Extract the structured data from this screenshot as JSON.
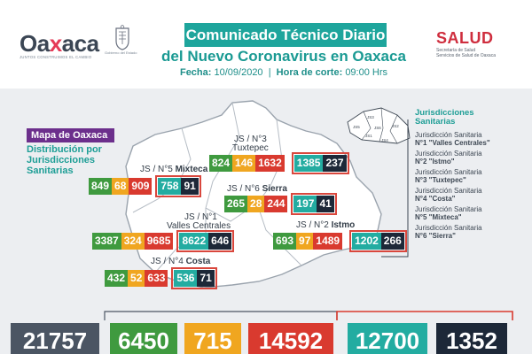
{
  "header": {
    "logo_word_a": "Oa",
    "logo_word_x": "x",
    "logo_word_b": "aca",
    "logo_tagline": "JUNTOS CONSTRUIMOS EL CAMBIO",
    "seal_caption": "Gobierno del Estado",
    "title": "Comunicado Técnico Diario",
    "subtitle": "del Nuevo Coronavirus en Oaxaca",
    "fecha_label": "Fecha:",
    "fecha_value": "10/09/2020",
    "separator": "|",
    "hora_label": "Hora de corte:",
    "hora_value": "09:00 Hrs",
    "salud": "SALUD",
    "salud_sub": "Secretaría de Salud\nServicios de Salud de Oaxaca"
  },
  "map": {
    "label": "Mapa de Oaxaca",
    "dist_line1": "Distribución por",
    "dist_line2": "Jurisdicciones",
    "dist_line3": "Sanitarias"
  },
  "jurisdictions": [
    {
      "name_prefix": "JS / N°3",
      "name": "Tuxtepec",
      "values": [
        "824",
        "146",
        "1632"
      ],
      "framed": [
        "1385",
        "237"
      ]
    },
    {
      "name_prefix": "JS / N°5",
      "name": "Mixteca",
      "values": [
        "849",
        "68",
        "909"
      ],
      "framed": [
        "758",
        "91"
      ]
    },
    {
      "name_prefix": "JS / N°6",
      "name": "Sierra",
      "values": [
        "265",
        "28",
        "244"
      ],
      "framed": [
        "197",
        "41"
      ]
    },
    {
      "name_prefix": "JS / N°1",
      "name": "Valles Centrales",
      "values": [
        "3387",
        "324",
        "9685"
      ],
      "framed": [
        "8622",
        "646"
      ]
    },
    {
      "name_prefix": "JS / N°2",
      "name": "Istmo",
      "values": [
        "693",
        "97",
        "1489"
      ],
      "framed": [
        "1202",
        "266"
      ]
    },
    {
      "name_prefix": "JS / N°4",
      "name": "Costa",
      "values": [
        "432",
        "52",
        "633"
      ],
      "framed": [
        "536",
        "71"
      ]
    }
  ],
  "mini_map_labels": [
    "JS5",
    "JS3",
    "JS6",
    "JS1",
    "JS2",
    "JS4"
  ],
  "panel": {
    "title_line1": "Jurisdicciones",
    "title_line2": "Sanitarias",
    "items": [
      {
        "prefix": "Jurisdicción Sanitaria",
        "name": "N°1 \"Valles Centrales\""
      },
      {
        "prefix": "Jurisdicción Sanitaria",
        "name": "N°2 \"Istmo\""
      },
      {
        "prefix": "Jurisdicción Sanitaria",
        "name": "N°3 \"Tuxtepec\""
      },
      {
        "prefix": "Jurisdicción Sanitaria",
        "name": "N°4 \"Costa\""
      },
      {
        "prefix": "Jurisdicción Sanitaria",
        "name": "N°5 \"Mixteca\""
      },
      {
        "prefix": "Jurisdicción Sanitaria",
        "name": "N°6 \"Sierra\""
      }
    ]
  },
  "totals": [
    "21757",
    "6450",
    "715",
    "14592",
    "12700",
    "1352"
  ],
  "colors": {
    "green": "#3f9a3f",
    "orange": "#f0a620",
    "red": "#d93a2f",
    "teal": "#23aca1",
    "dark": "#1d2838",
    "gray": "#4b5563",
    "purple": "#6c2f8c"
  }
}
